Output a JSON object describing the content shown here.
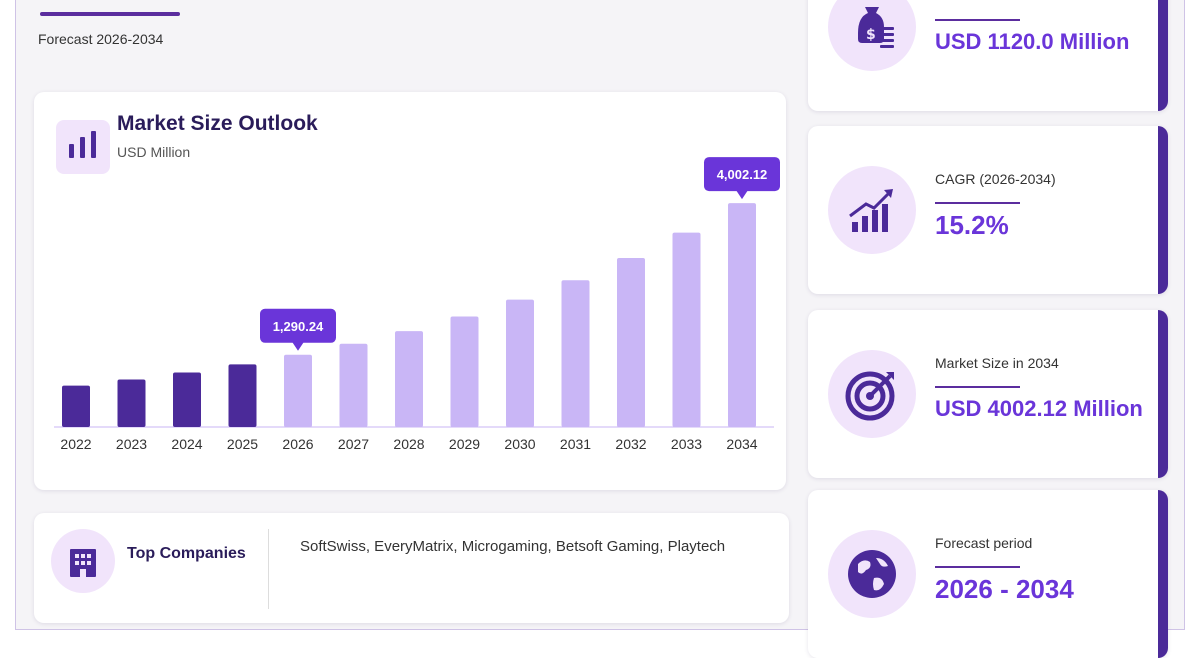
{
  "header": {
    "forecast_subtitle": "Forecast 2026-2034"
  },
  "chart_data": {
    "type": "bar",
    "title": "Market Size Outlook",
    "unit_label": "USD Million",
    "categories": [
      "2022",
      "2023",
      "2024",
      "2025",
      "2026",
      "2027",
      "2028",
      "2029",
      "2030",
      "2031",
      "2032",
      "2033",
      "2034"
    ],
    "values": [
      740,
      850,
      975,
      1120,
      1290.24,
      1487,
      1714,
      1975,
      2276,
      2622,
      3020,
      3475,
      4002.12
    ],
    "historical_color": "#4b2a99",
    "forecast_color": "#c9b6f6",
    "callouts": [
      {
        "index": 4,
        "label": "1,290.24"
      },
      {
        "index": 12,
        "label": "4,002.12"
      }
    ],
    "callout_color": "#6a35d9",
    "ylim": [
      0,
      4200
    ],
    "grid": false
  },
  "top_companies": {
    "label": "Top Companies",
    "list": "SoftSwiss, EveryMatrix, Microgaming, Betsoft Gaming, Playtech"
  },
  "stats": [
    {
      "label": "",
      "value": "USD 1120.0 Million",
      "icon": "money-bag-icon"
    },
    {
      "label": "CAGR (2026-2034)",
      "value": "15.2%",
      "icon": "growth-chart-icon"
    },
    {
      "label": "Market Size in 2034",
      "value": "USD 4002.12 Million",
      "icon": "target-icon"
    },
    {
      "label": "Forecast period",
      "value": "2026 - 2034",
      "icon": "globe-icon"
    }
  ],
  "colors": {
    "accent": "#5b2d9e",
    "value_text": "#6a35d9",
    "icon_bg": "#f1e4fb",
    "title_text": "#2a1c5a"
  }
}
